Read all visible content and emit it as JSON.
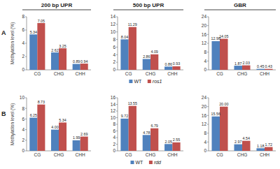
{
  "column_headers": [
    "200 bp UPR",
    "500 bp UPR",
    "GBR"
  ],
  "row_labels": [
    "A",
    "B"
  ],
  "chart_data": [
    {
      "type": "bar",
      "ylabel": "Methylation level (%)",
      "categories": [
        "CG",
        "CHG",
        "CHH"
      ],
      "ylim": [
        0,
        8
      ],
      "yticks": [
        0,
        2,
        4,
        6,
        8
      ],
      "data_labels": true,
      "series": [
        {
          "color": "#4f81bd",
          "values": [
            5.34,
            2.62,
            0.89
          ],
          "value_labels": [
            "5.34",
            "2.62",
            "0.89"
          ]
        },
        {
          "color": "#c0504d",
          "values": [
            7.05,
            3.25,
            0.94
          ],
          "value_labels": [
            "7.05",
            "3.25",
            "0.94"
          ]
        }
      ]
    },
    {
      "type": "bar",
      "categories": [
        "CG",
        "CHG",
        "CHH"
      ],
      "ylim": [
        0,
        14
      ],
      "yticks": [
        0,
        2,
        4,
        6,
        8,
        10,
        12,
        14
      ],
      "data_labels": true,
      "legend": "bottom",
      "series": [
        {
          "name": "WT",
          "color": "#4f81bd",
          "values": [
            8.04,
            2.86,
            0.86
          ],
          "value_labels": [
            "8.04",
            "2.86",
            "0.86"
          ]
        },
        {
          "name": "ros1",
          "color": "#c0504d",
          "values": [
            11.29,
            4.09,
            0.93
          ],
          "value_labels": [
            "11.29",
            "4.09",
            "0.93"
          ]
        }
      ]
    },
    {
      "type": "bar",
      "categories": [
        "CG",
        "CHG",
        "CHH"
      ],
      "ylim": [
        0,
        24
      ],
      "yticks": [
        0,
        4,
        8,
        12,
        16,
        20,
        24
      ],
      "data_labels": true,
      "series": [
        {
          "color": "#4f81bd",
          "values": [
            12.98,
            1.87,
            0.45
          ],
          "value_labels": [
            "12.98",
            "1.87",
            "0.45"
          ]
        },
        {
          "color": "#c0504d",
          "values": [
            14.05,
            2.03,
            0.43
          ],
          "value_labels": [
            "14.05",
            "2.03",
            "0.43"
          ]
        }
      ]
    },
    {
      "type": "bar",
      "ylabel": "Methylation level (%)",
      "categories": [
        "CG",
        "CHG",
        "CHH"
      ],
      "ylim": [
        0,
        10
      ],
      "yticks": [
        0,
        2,
        4,
        6,
        8,
        10
      ],
      "data_labels": true,
      "series": [
        {
          "color": "#4f81bd",
          "values": [
            6.25,
            4.0,
            1.99
          ],
          "value_labels": [
            "6.25",
            "4.00",
            "1.99"
          ]
        },
        {
          "color": "#c0504d",
          "values": [
            8.73,
            5.34,
            2.69
          ],
          "value_labels": [
            "8.73",
            "5.34",
            "2.69"
          ]
        }
      ]
    },
    {
      "type": "bar",
      "categories": [
        "CG",
        "CHG",
        "CHH"
      ],
      "ylim": [
        0,
        16
      ],
      "yticks": [
        0,
        2,
        4,
        6,
        8,
        10,
        12,
        14,
        16
      ],
      "data_labels": true,
      "legend": "bottom",
      "series": [
        {
          "name": "WT",
          "color": "#4f81bd",
          "values": [
            9.72,
            4.78,
            2.05
          ],
          "value_labels": [
            "9.72",
            "4.78",
            "2.05"
          ]
        },
        {
          "name": "rdd",
          "color": "#c0504d",
          "values": [
            13.55,
            6.79,
            2.55
          ],
          "value_labels": [
            "13.55",
            "6.79",
            "2.55"
          ]
        }
      ]
    },
    {
      "type": "bar",
      "categories": [
        "CG",
        "CHG",
        "CHH"
      ],
      "ylim": [
        0,
        24
      ],
      "yticks": [
        0,
        4,
        8,
        12,
        16,
        20,
        24
      ],
      "data_labels": true,
      "series": [
        {
          "color": "#4f81bd",
          "values": [
            15.56,
            2.97,
            1.18
          ],
          "value_labels": [
            "15.56",
            "2.97",
            "1.18"
          ]
        },
        {
          "color": "#c0504d",
          "values": [
            20.0,
            4.54,
            1.72
          ],
          "value_labels": [
            "20.00",
            "4.54",
            "1.72"
          ]
        }
      ]
    }
  ]
}
